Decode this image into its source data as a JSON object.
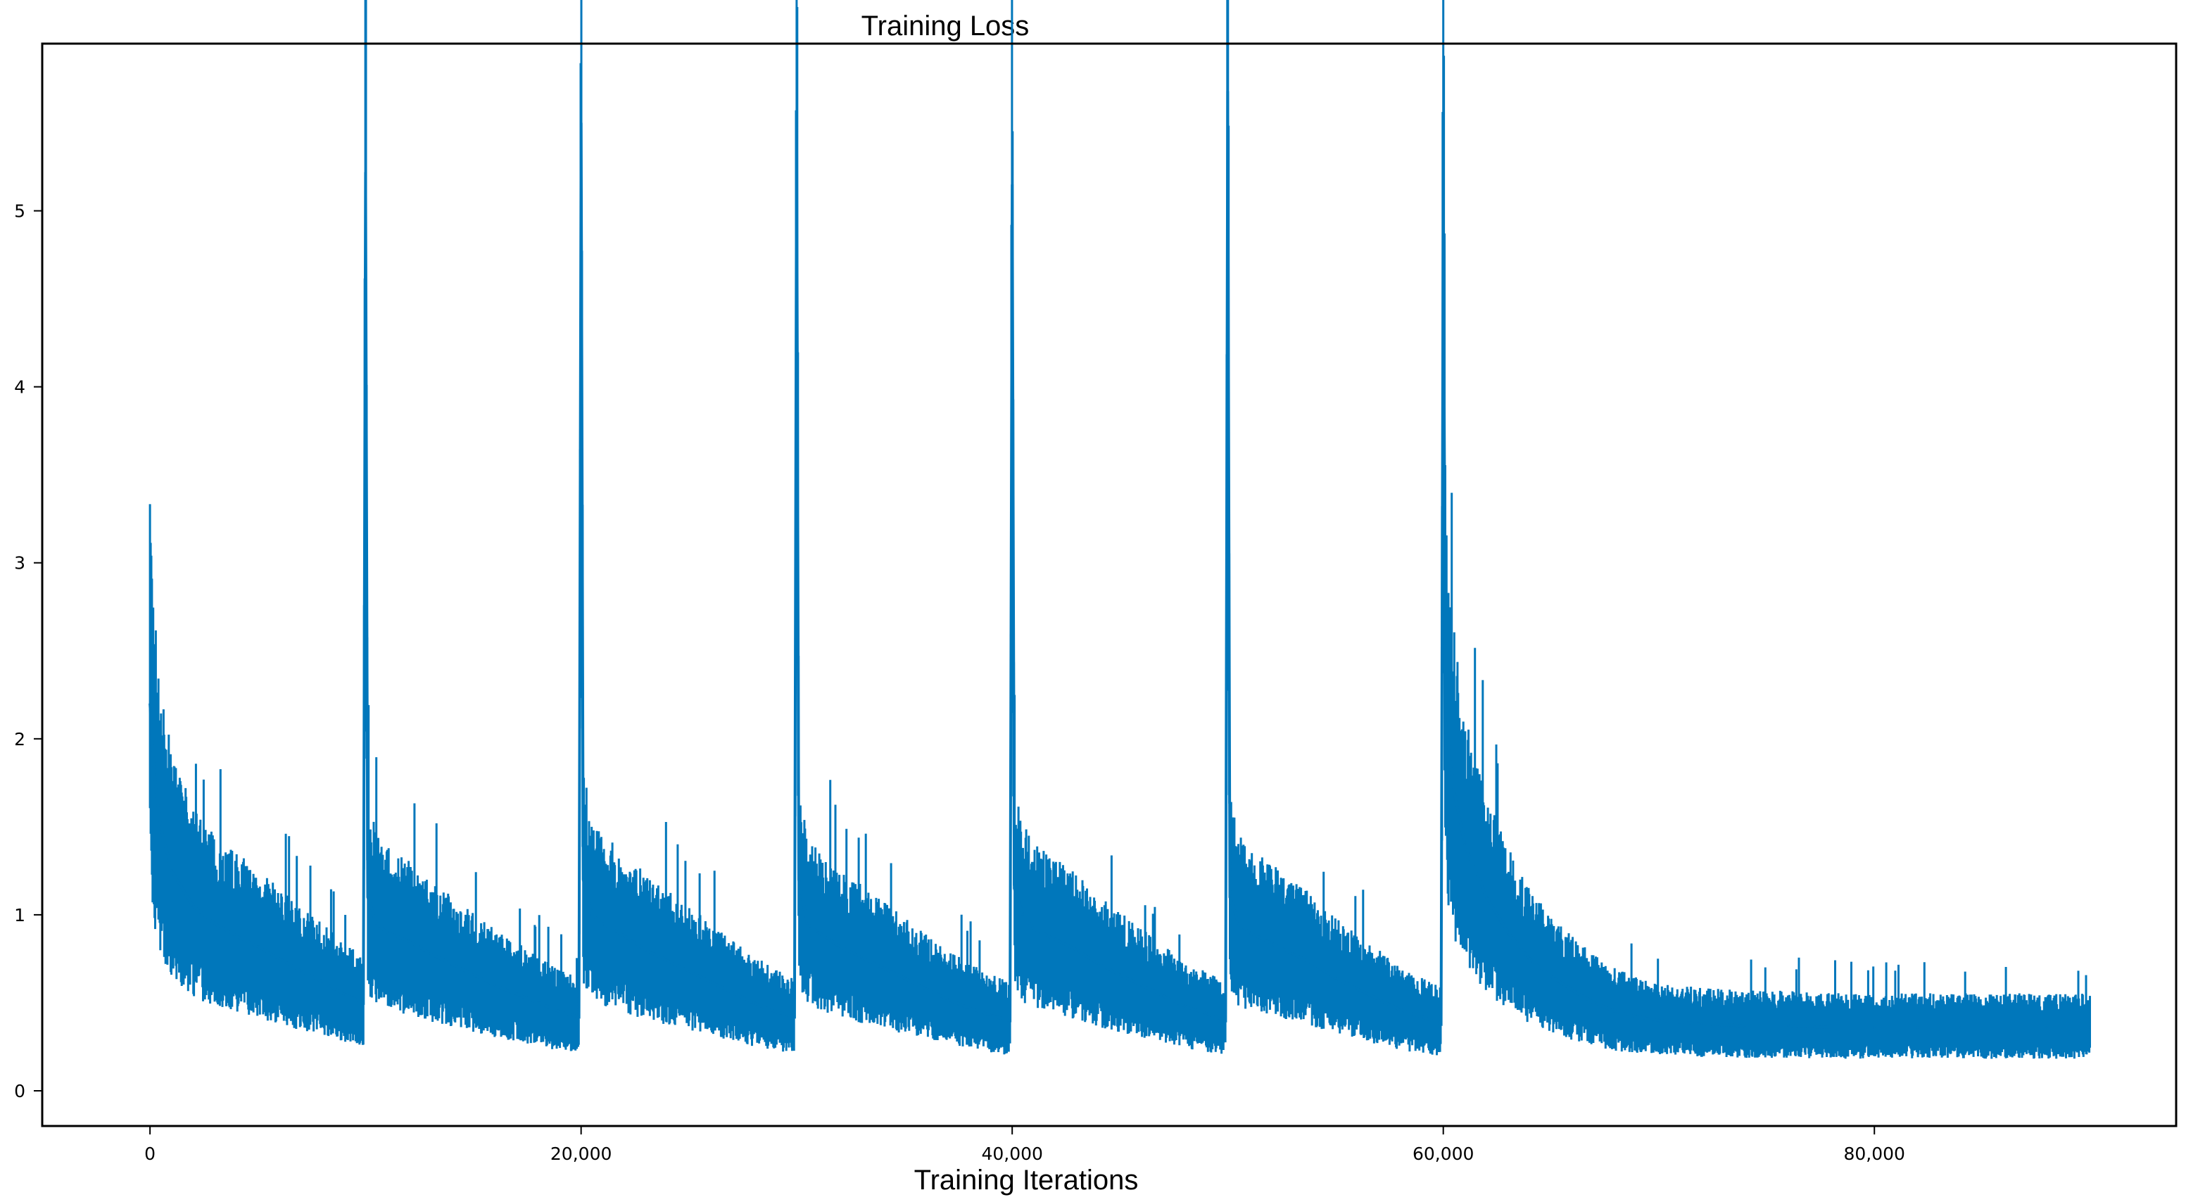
{
  "colors": {
    "series": "#0077bb",
    "axes": "#000000",
    "background": "#ffffff"
  },
  "chart_data": {
    "type": "line",
    "title": "Training Loss",
    "xlabel": "Training Iterations",
    "ylabel": "",
    "xlim": [
      -5000,
      94000
    ],
    "ylim": [
      -0.2,
      5.95
    ],
    "grid": false,
    "legend": "none",
    "x_ticks": [
      0,
      20000,
      40000,
      60000,
      80000
    ],
    "x_tick_labels": [
      "0",
      "20,000",
      "40,000",
      "60,000",
      "80,000"
    ],
    "y_ticks": [
      0,
      1,
      2,
      3,
      4,
      5
    ],
    "y_tick_labels": [
      "0",
      "1",
      "2",
      "3",
      "4",
      "5"
    ],
    "series": [
      {
        "x": [
          0,
          200,
          500,
          1000,
          2000,
          3000,
          4000,
          5000,
          6000,
          7000,
          8000,
          9000,
          9900,
          10000,
          10100,
          10500,
          11000,
          12000,
          13000,
          14000,
          15000,
          16000,
          17000,
          18000,
          19000,
          19900,
          20000,
          20100,
          20500,
          21000,
          22000,
          23000,
          24000,
          25000,
          26000,
          27000,
          28000,
          29000,
          29900,
          30000,
          30100,
          30500,
          31000,
          32000,
          33000,
          34000,
          35000,
          36000,
          37000,
          38000,
          39000,
          39900,
          40000,
          40100,
          40500,
          41000,
          42000,
          43000,
          44000,
          45000,
          46000,
          47000,
          48000,
          49000,
          49900,
          50000,
          50100,
          50500,
          51000,
          52000,
          53000,
          54000,
          55000,
          56000,
          57000,
          58000,
          59000,
          59900,
          60000,
          60100,
          60500,
          61000,
          62000,
          63000,
          64000,
          65000,
          66000,
          67000,
          68000,
          69000,
          70000,
          72000,
          74000,
          76000,
          78000,
          80000,
          82000,
          84000,
          86000,
          88000,
          90000
        ],
        "y": [
          2.2,
          1.8,
          1.5,
          1.25,
          1.05,
          0.95,
          0.88,
          0.82,
          0.75,
          0.68,
          0.62,
          0.55,
          0.5,
          5.22,
          1.1,
          0.95,
          0.9,
          0.85,
          0.78,
          0.72,
          0.66,
          0.6,
          0.55,
          0.5,
          0.45,
          0.42,
          5.5,
          1.2,
          1.0,
          0.95,
          0.88,
          0.8,
          0.74,
          0.68,
          0.62,
          0.56,
          0.5,
          0.45,
          0.42,
          5.48,
          1.2,
          0.95,
          0.9,
          0.82,
          0.76,
          0.7,
          0.64,
          0.58,
          0.52,
          0.47,
          0.43,
          0.4,
          5.15,
          1.15,
          1.0,
          0.92,
          0.86,
          0.8,
          0.72,
          0.66,
          0.6,
          0.54,
          0.48,
          0.44,
          0.4,
          5.68,
          1.1,
          0.95,
          0.9,
          0.84,
          0.78,
          0.72,
          0.64,
          0.58,
          0.52,
          0.46,
          0.42,
          0.38,
          5.18,
          2.1,
          1.7,
          1.4,
          1.1,
          0.9,
          0.75,
          0.65,
          0.57,
          0.5,
          0.45,
          0.42,
          0.4,
          0.38,
          0.37,
          0.37,
          0.36,
          0.36,
          0.36,
          0.36,
          0.36,
          0.36,
          0.36
        ]
      }
    ]
  }
}
